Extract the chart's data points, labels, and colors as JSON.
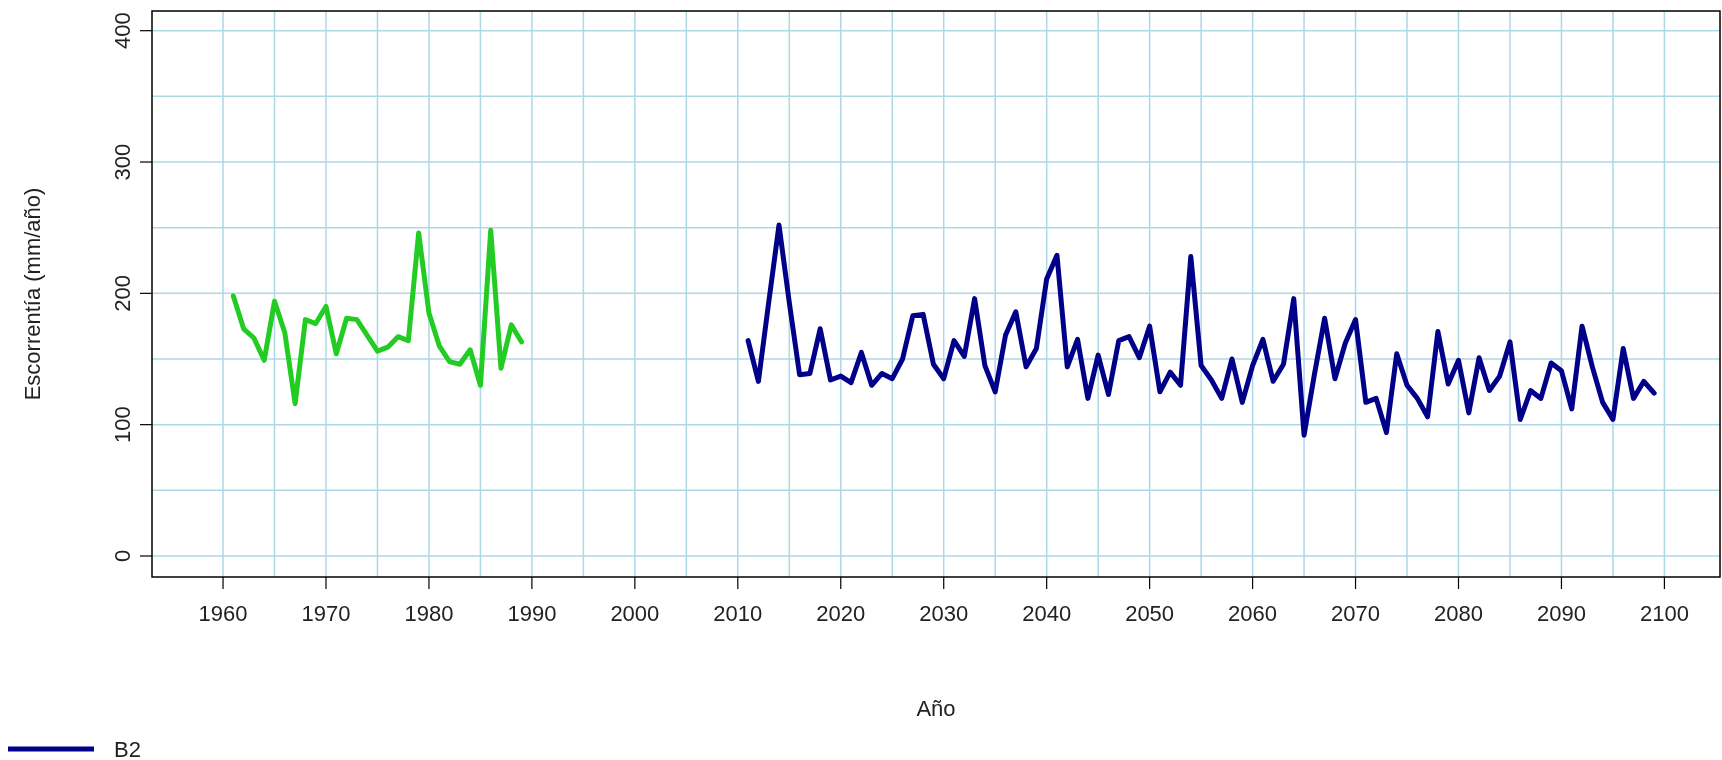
{
  "chart_data": {
    "type": "line",
    "xlabel": "Año",
    "ylabel": "Escorrentía (mm/año)",
    "x": [
      1961,
      1962,
      1963,
      1964,
      1965,
      1966,
      1967,
      1968,
      1969,
      1970,
      1971,
      1972,
      1973,
      1974,
      1975,
      1976,
      1977,
      1978,
      1979,
      1980,
      1981,
      1982,
      1983,
      1984,
      1985,
      1986,
      1987,
      1988,
      1989
    ],
    "series": [
      {
        "color": "#22cc22",
        "values": [
          198,
          173,
          166,
          149,
          194,
          170,
          116,
          180,
          177,
          190,
          154,
          181,
          180,
          168,
          156,
          159,
          167,
          164,
          246,
          185,
          160,
          148,
          146,
          157,
          130,
          248,
          143,
          176,
          163
        ]
      },
      {
        "name": "B2",
        "color": "#000088",
        "x": [
          2011,
          2012,
          2013,
          2014,
          2015,
          2016,
          2017,
          2018,
          2019,
          2020,
          2021,
          2022,
          2023,
          2024,
          2025,
          2026,
          2027,
          2028,
          2029,
          2030,
          2031,
          2032,
          2033,
          2034,
          2035,
          2036,
          2037,
          2038,
          2039,
          2040,
          2041,
          2042,
          2043,
          2044,
          2045,
          2046,
          2047,
          2048,
          2049,
          2050,
          2051,
          2052,
          2053,
          2054,
          2055,
          2056,
          2057,
          2058,
          2059,
          2060,
          2061,
          2062,
          2063,
          2064,
          2065,
          2066,
          2067,
          2068,
          2069,
          2070,
          2071,
          2072,
          2073,
          2074,
          2075,
          2076,
          2077,
          2078,
          2079,
          2080,
          2081,
          2082,
          2083,
          2084,
          2085,
          2086,
          2087,
          2088,
          2089,
          2090,
          2091,
          2092,
          2093,
          2094,
          2095,
          2096,
          2097,
          2098,
          2099
        ],
        "values": [
          164,
          133,
          193,
          252,
          193,
          138,
          139,
          173,
          134,
          137,
          132,
          155,
          130,
          139,
          135,
          150,
          183,
          184,
          146,
          135,
          164,
          152,
          196,
          145,
          125,
          168,
          186,
          144,
          158,
          211,
          229,
          144,
          165,
          120,
          153,
          123,
          164,
          167,
          151,
          175,
          125,
          140,
          130,
          228,
          145,
          134,
          120,
          150,
          117,
          145,
          165,
          133,
          146,
          196,
          92,
          138,
          181,
          135,
          162,
          180,
          117,
          120,
          94,
          154,
          130,
          120,
          106,
          171,
          131,
          149,
          109,
          151,
          126,
          137,
          163,
          104,
          126,
          120,
          147,
          141,
          112,
          175,
          144,
          117,
          104,
          158,
          120,
          133,
          124
        ]
      }
    ],
    "xlim": [
      1953.1,
      2105.4
    ],
    "ylim": [
      -16,
      415
    ],
    "xticks": [
      1960,
      {
        "value": 1965,
        "label": null
      },
      1970,
      {
        "value": 1975,
        "label": null
      },
      1980,
      {
        "value": 1985,
        "label": null
      },
      1990,
      {
        "value": 1995,
        "label": null
      },
      2000,
      {
        "value": 2005,
        "label": null
      },
      2010,
      {
        "value": 2015,
        "label": null
      },
      2020,
      {
        "value": 2025,
        "label": null
      },
      2030,
      {
        "value": 2035,
        "label": null
      },
      2040,
      {
        "value": 2045,
        "label": null
      },
      2050,
      {
        "value": 2055,
        "label": null
      },
      2060,
      {
        "value": 2065,
        "label": null
      },
      2070,
      {
        "value": 2075,
        "label": null
      },
      2080,
      {
        "value": 2085,
        "label": null
      },
      2090,
      {
        "value": 2095,
        "label": null
      },
      2100
    ],
    "yticks": [
      0,
      {
        "value": 50,
        "label": null
      },
      100,
      {
        "value": 150,
        "label": null
      },
      200,
      {
        "value": 250,
        "label": null
      },
      300,
      {
        "value": 350,
        "label": null
      },
      400
    ],
    "grid": true,
    "legend": "bottom left",
    "line_style": "solid",
    "marker": "none"
  }
}
